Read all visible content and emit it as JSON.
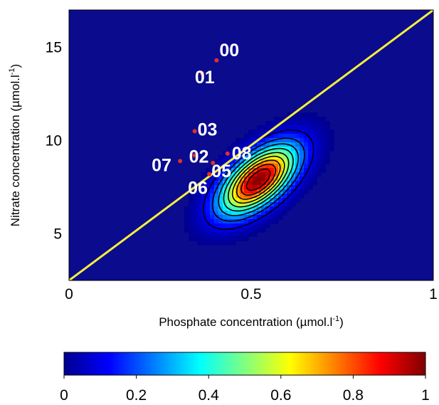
{
  "chart_data": [
    {
      "type": "heatmap",
      "title": "",
      "xlabel": "Phosphate concentration (µmol.l",
      "xlabel_sup": "-1",
      "xlabel_close": ")",
      "ylabel": "Nitrate concentration (µmol.l",
      "ylabel_sup": "-1",
      "ylabel_close": ")",
      "xlim": [
        0,
        1
      ],
      "ylim": [
        2.5,
        17
      ],
      "x_ticks": [
        {
          "value": 0,
          "label": "0"
        },
        {
          "value": 0.5,
          "label": "0.5"
        },
        {
          "value": 1,
          "label": "1"
        }
      ],
      "y_ticks": [
        {
          "value": 5,
          "label": "5"
        },
        {
          "value": 10,
          "label": "10"
        },
        {
          "value": 15,
          "label": "15"
        }
      ],
      "grid": false,
      "density": {
        "center": [
          0.52,
          7.9
        ],
        "sigma_major": 0.085,
        "sigma_minor": 0.042,
        "angle_deg": 40
      },
      "contour_levels": [
        0.1,
        0.2,
        0.3,
        0.4,
        0.5,
        0.6,
        0.7,
        0.8,
        0.9
      ],
      "reference_line": {
        "color": "#f5ef3a",
        "from": [
          0,
          2.5
        ],
        "to": [
          1,
          17
        ]
      },
      "points": [
        {
          "label": "00",
          "x": 0.405,
          "y": 14.3
        },
        {
          "label": "01",
          "x": 0.365,
          "y": 13.6
        },
        {
          "label": "03",
          "x": 0.345,
          "y": 10.5
        },
        {
          "label": "02",
          "x": 0.345,
          "y": 9.2
        },
        {
          "label": "07",
          "x": 0.305,
          "y": 8.9
        },
        {
          "label": "08",
          "x": 0.435,
          "y": 9.3
        },
        {
          "label": "05",
          "x": 0.395,
          "y": 8.8
        },
        {
          "label": "06",
          "x": 0.385,
          "y": 8.2
        }
      ],
      "point_color": "#e0302a"
    },
    {
      "type": "colorbar",
      "range": [
        0,
        1
      ],
      "ticks": [
        {
          "value": 0,
          "label": "0"
        },
        {
          "value": 0.2,
          "label": "0.2"
        },
        {
          "value": 0.4,
          "label": "0.4"
        },
        {
          "value": 0.6,
          "label": "0.6"
        },
        {
          "value": 0.8,
          "label": "0.8"
        },
        {
          "value": 1,
          "label": "1"
        }
      ],
      "colormap": "jet"
    }
  ]
}
